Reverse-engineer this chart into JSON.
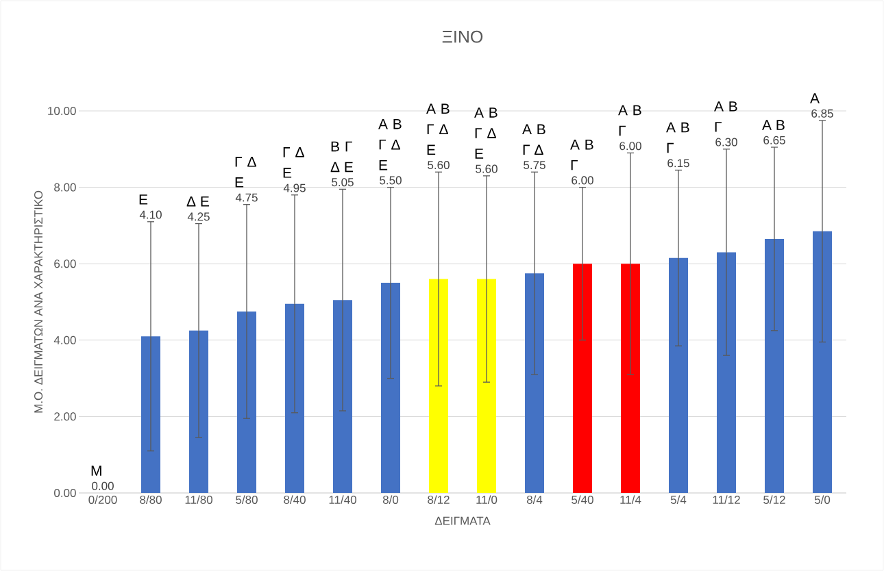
{
  "chart_data": {
    "type": "bar",
    "title": "ΞΙΝΟ",
    "xlabel": "ΔΕΙΓΜΑΤΑ",
    "ylabel": "Μ.Ο. ΔΕΙΓΜΑΤΩΝ ΑΝΑ ΧΑΡΑΚΤΗΡΙΣΤΙΚΟ",
    "categories": [
      "0/200",
      "8/80",
      "11/80",
      "5/80",
      "8/40",
      "11/40",
      "8/0",
      "8/12",
      "11/0",
      "8/4",
      "5/40",
      "11/4",
      "5/4",
      "11/12",
      "5/12",
      "5/0"
    ],
    "values": [
      0.0,
      4.1,
      4.25,
      4.75,
      4.95,
      5.05,
      5.5,
      5.6,
      5.6,
      5.75,
      6.0,
      6.0,
      6.15,
      6.3,
      6.65,
      6.85
    ],
    "errors": [
      null,
      3.0,
      2.8,
      2.8,
      2.85,
      2.9,
      2.5,
      2.8,
      2.7,
      2.65,
      2.0,
      2.9,
      2.3,
      2.7,
      2.4,
      2.9
    ],
    "colors": [
      "#4472c4",
      "#4472c4",
      "#4472c4",
      "#4472c4",
      "#4472c4",
      "#4472c4",
      "#4472c4",
      "#ffff00",
      "#ffff00",
      "#4472c4",
      "#ff0000",
      "#ff0000",
      "#4472c4",
      "#4472c4",
      "#4472c4",
      "#4472c4"
    ],
    "ylim": [
      0,
      10
    ],
    "yticks": [
      {
        "value": 0,
        "label": "0.00"
      },
      {
        "value": 2,
        "label": "2.00"
      },
      {
        "value": 4,
        "label": "4.00"
      },
      {
        "value": 6,
        "label": "6.00"
      },
      {
        "value": 8,
        "label": "8.00"
      },
      {
        "value": 10,
        "label": "10.00"
      }
    ],
    "grid": "y",
    "annotations": [
      "Μ",
      "Ε",
      "Δ Ε",
      "Γ Δ Ε",
      "Γ Δ Ε",
      "Β Γ Δ Ε",
      "Α Β Γ Δ Ε",
      "Α Β Γ Δ Ε",
      "Α Β Γ Δ Ε",
      "Α Β Γ Δ",
      "Α Β Γ",
      "Α Β Γ",
      "Α Β Γ",
      "Α Β Γ",
      "Α Β",
      "Α",
      "0.00",
      "4.10",
      "4.25",
      "4.75",
      "4.95",
      "5.05",
      "5.50",
      "5.60",
      "5.60",
      "5.75",
      "6.00",
      "6.00",
      "6.15",
      "6.30",
      "6.65",
      "6.85"
    ]
  }
}
